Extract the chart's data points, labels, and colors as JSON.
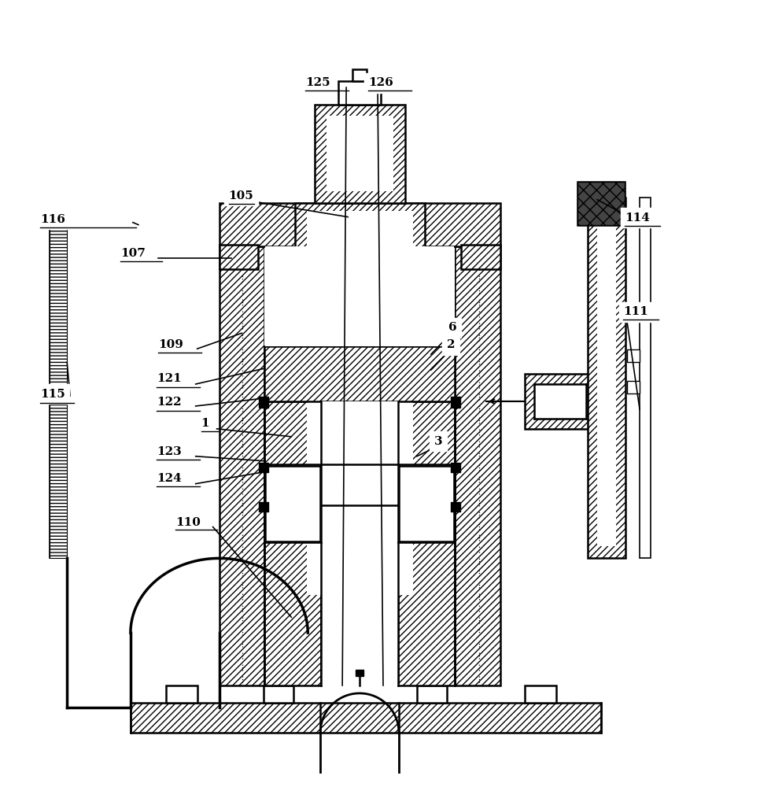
{
  "bg_color": "#ffffff",
  "line_color": "#000000",
  "fig_width": 9.66,
  "fig_height": 10.0
}
